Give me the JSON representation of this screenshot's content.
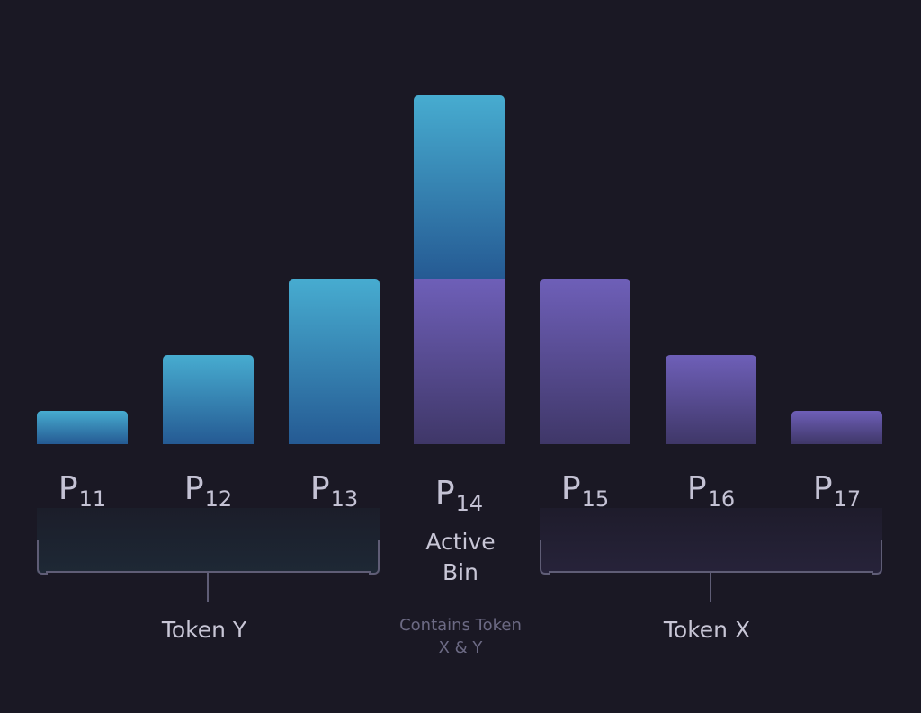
{
  "colors": {
    "background": "#1a1824",
    "token_y": "#47acd0",
    "token_x": "#6e5fb8"
  },
  "bins": [
    {
      "base": "P",
      "sub": "11",
      "token_y": 0.2,
      "token_x": 0
    },
    {
      "base": "P",
      "sub": "12",
      "token_y": 0.54,
      "token_x": 0
    },
    {
      "base": "P",
      "sub": "13",
      "token_y": 1.0,
      "token_x": 0
    },
    {
      "base": "P",
      "sub": "14",
      "token_y": 1.11,
      "token_x": 1.0
    },
    {
      "base": "P",
      "sub": "15",
      "token_y": 0,
      "token_x": 1.0
    },
    {
      "base": "P",
      "sub": "16",
      "token_y": 0,
      "token_x": 0.54
    },
    {
      "base": "P",
      "sub": "17",
      "token_y": 0,
      "token_x": 0.2
    }
  ],
  "labels": {
    "token_y": "Token Y",
    "token_x": "Token X",
    "active_line1": "Active",
    "active_line2": "Bin",
    "contains_line1": "Contains Token",
    "contains_line2": "X & Y"
  }
}
